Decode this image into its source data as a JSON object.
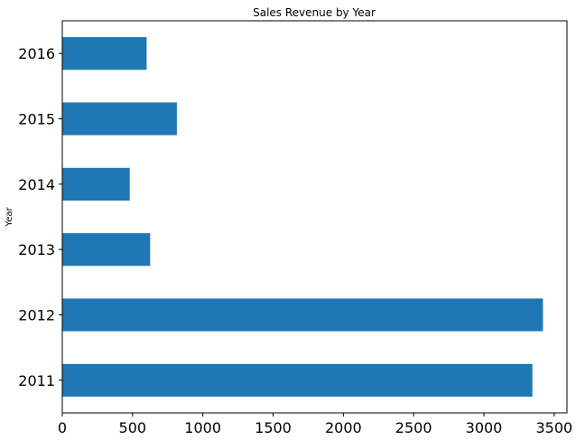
{
  "chart_data": {
    "type": "bar",
    "orientation": "horizontal",
    "title": "Sales Revenue by Year",
    "xlabel": "",
    "ylabel": "Year",
    "categories": [
      "2011",
      "2012",
      "2013",
      "2014",
      "2015",
      "2016"
    ],
    "values": [
      3345,
      3420,
      625,
      480,
      815,
      600
    ],
    "xlim": [
      0,
      3591
    ],
    "xticks": [
      0,
      500,
      1000,
      1500,
      2000,
      2500,
      3000,
      3500
    ],
    "bar_color": "#1f77b4",
    "grid": false,
    "legend": "none"
  }
}
